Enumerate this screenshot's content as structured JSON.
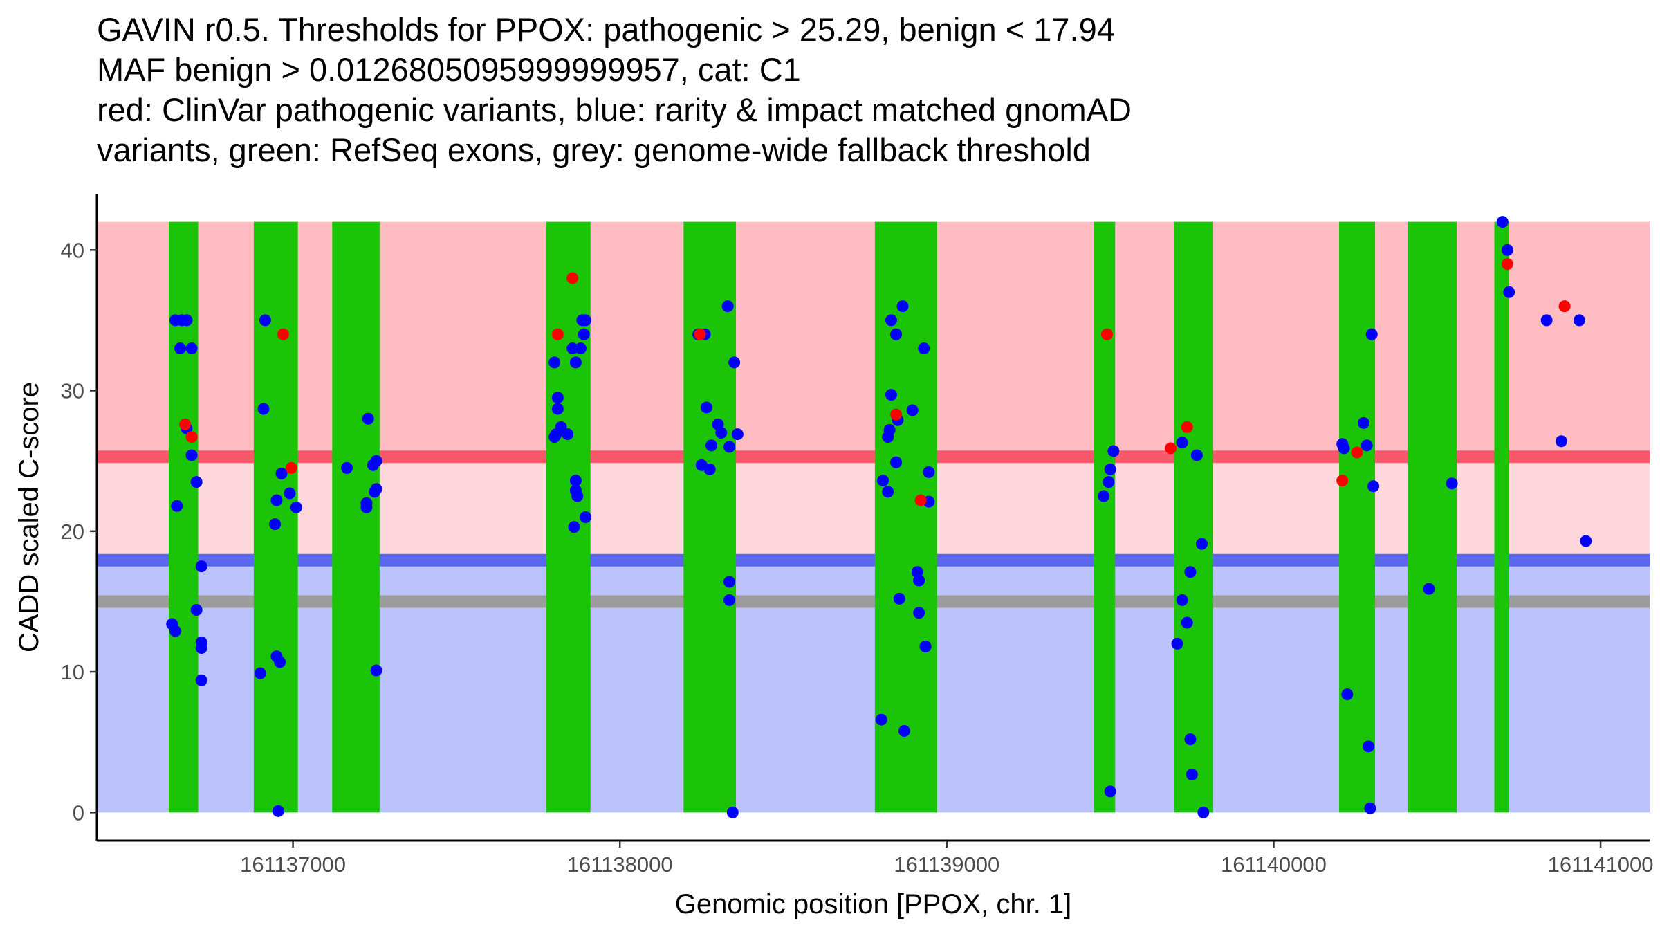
{
  "title_lines": [
    "GAVIN r0.5. Thresholds for PPOX: pathogenic > 25.29, benign < 17.94",
    "MAF benign > 0.0126805095999999957, cat: C1",
    "red: ClinVar pathogenic variants, blue: rarity & impact matched gnomAD",
    "variants, green: RefSeq exons, grey: genome-wide fallback threshold"
  ],
  "colors": {
    "pathogenic_band": "#ffbcc3",
    "between_band": "#ffd8dd",
    "benign_band": "#bcc2fb",
    "pathogenic_line": "#f5596a",
    "benign_line": "#5b68ee",
    "fallback_line": "#9c9c9c",
    "exon": "#1bc407",
    "pathogenic_point": "#ff0000",
    "gnomad_point": "#0000ff"
  },
  "chart_data": {
    "type": "scatter",
    "title": "GAVIN r0.5. Thresholds for PPOX: pathogenic > 25.29, benign < 17.94",
    "xlabel": "Genomic position [PPOX, chr. 1]",
    "ylabel": "CADD scaled C-score",
    "xlim": [
      161136400,
      161141150
    ],
    "ylim": [
      -2,
      44
    ],
    "x_ticks": [
      161137000,
      161138000,
      161139000,
      161140000,
      161141000
    ],
    "y_ticks": [
      0,
      10,
      20,
      30,
      40
    ],
    "band_x_range": [
      161136400,
      161141150
    ],
    "bands": [
      {
        "name": "pathogenic",
        "from": 25.29,
        "to": 42,
        "color": "#ffbcc3"
      },
      {
        "name": "intermediate",
        "from": 17.94,
        "to": 25.29,
        "color": "#ffd8dd"
      },
      {
        "name": "benign",
        "from": 0,
        "to": 17.94,
        "color": "#bcc2fb"
      }
    ],
    "threshold_lines": [
      {
        "name": "pathogenic threshold",
        "y": 25.29,
        "color": "#f5596a"
      },
      {
        "name": "benign threshold",
        "y": 17.94,
        "color": "#5b68ee"
      },
      {
        "name": "genome-wide fallback threshold",
        "y": 15.0,
        "color": "#9c9c9c"
      }
    ],
    "exons": [
      [
        161136620,
        161136710
      ],
      [
        161136880,
        161137015
      ],
      [
        161137120,
        161137265
      ],
      [
        161137775,
        161137910
      ],
      [
        161138195,
        161138355
      ],
      [
        161138780,
        161138970
      ],
      [
        161139450,
        161139515
      ],
      [
        161139695,
        161139815
      ],
      [
        161140200,
        161140310
      ],
      [
        161140410,
        161140560
      ],
      [
        161140675,
        161140720
      ]
    ],
    "series": [
      {
        "name": "ClinVar pathogenic variants",
        "color": "#ff0000",
        "points": [
          [
            161136670,
            27.6
          ],
          [
            161136690,
            26.7
          ],
          [
            161136970,
            34.0
          ],
          [
            161136995,
            24.5
          ],
          [
            161137810,
            34.0
          ],
          [
            161137855,
            38.0
          ],
          [
            161138245,
            34.0
          ],
          [
            161138845,
            28.3
          ],
          [
            161138920,
            22.2
          ],
          [
            161139490,
            34.0
          ],
          [
            161139685,
            25.9
          ],
          [
            161139735,
            27.4
          ],
          [
            161140210,
            23.6
          ],
          [
            161140255,
            25.6
          ],
          [
            161140715,
            39.0
          ],
          [
            161140890,
            36.0
          ]
        ]
      },
      {
        "name": "rarity & impact matched gnomAD variants",
        "color": "#0000ff",
        "points": [
          [
            161136640,
            35.0
          ],
          [
            161136660,
            35.0
          ],
          [
            161136675,
            35.0
          ],
          [
            161136655,
            33.0
          ],
          [
            161136690,
            33.0
          ],
          [
            161136645,
            21.8
          ],
          [
            161136690,
            25.4
          ],
          [
            161136705,
            23.5
          ],
          [
            161136720,
            17.5
          ],
          [
            161136630,
            13.4
          ],
          [
            161136640,
            12.9
          ],
          [
            161136705,
            14.4
          ],
          [
            161136720,
            12.1
          ],
          [
            161136720,
            11.7
          ],
          [
            161136720,
            9.4
          ],
          [
            161136675,
            27.3
          ],
          [
            161136915,
            35.0
          ],
          [
            161136910,
            28.7
          ],
          [
            161136965,
            24.1
          ],
          [
            161136990,
            22.7
          ],
          [
            161136950,
            22.2
          ],
          [
            161137010,
            21.7
          ],
          [
            161136945,
            20.5
          ],
          [
            161136900,
            9.9
          ],
          [
            161136950,
            11.1
          ],
          [
            161136960,
            10.7
          ],
          [
            161136955,
            0.1
          ],
          [
            161137230,
            28.0
          ],
          [
            161137165,
            24.5
          ],
          [
            161137255,
            25.0
          ],
          [
            161137245,
            24.7
          ],
          [
            161137225,
            22.0
          ],
          [
            161137225,
            21.7
          ],
          [
            161137250,
            22.8
          ],
          [
            161137255,
            23.0
          ],
          [
            161137255,
            10.1
          ],
          [
            161137800,
            32.0
          ],
          [
            161137810,
            29.5
          ],
          [
            161137810,
            28.7
          ],
          [
            161137820,
            27.4
          ],
          [
            161137800,
            26.7
          ],
          [
            161137805,
            26.9
          ],
          [
            161137840,
            26.9
          ],
          [
            161137855,
            33.0
          ],
          [
            161137880,
            33.0
          ],
          [
            161137885,
            35.0
          ],
          [
            161137895,
            35.0
          ],
          [
            161137890,
            34.0
          ],
          [
            161137865,
            32.0
          ],
          [
            161137865,
            23.6
          ],
          [
            161137865,
            22.9
          ],
          [
            161137870,
            22.5
          ],
          [
            161137895,
            21.0
          ],
          [
            161137860,
            20.3
          ],
          [
            161138240,
            34.0
          ],
          [
            161138260,
            34.0
          ],
          [
            161138330,
            36.0
          ],
          [
            161138265,
            28.8
          ],
          [
            161138300,
            27.6
          ],
          [
            161138310,
            27.0
          ],
          [
            161138280,
            26.1
          ],
          [
            161138250,
            24.7
          ],
          [
            161138275,
            24.4
          ],
          [
            161138335,
            26.0
          ],
          [
            161138360,
            26.9
          ],
          [
            161138350,
            32.0
          ],
          [
            161138335,
            16.4
          ],
          [
            161138335,
            15.1
          ],
          [
            161138345,
            0.0
          ],
          [
            161138830,
            35.0
          ],
          [
            161138845,
            34.0
          ],
          [
            161138865,
            36.0
          ],
          [
            161138830,
            29.7
          ],
          [
            161138825,
            27.2
          ],
          [
            161138820,
            26.7
          ],
          [
            161138850,
            27.9
          ],
          [
            161138895,
            28.6
          ],
          [
            161138805,
            23.6
          ],
          [
            161138820,
            22.8
          ],
          [
            161138845,
            24.9
          ],
          [
            161138945,
            24.2
          ],
          [
            161138945,
            22.1
          ],
          [
            161138930,
            33.0
          ],
          [
            161138910,
            17.1
          ],
          [
            161138915,
            16.5
          ],
          [
            161138855,
            15.2
          ],
          [
            161138915,
            14.2
          ],
          [
            161138935,
            11.8
          ],
          [
            161138800,
            6.6
          ],
          [
            161138870,
            5.8
          ],
          [
            161139480,
            22.5
          ],
          [
            161139500,
            24.4
          ],
          [
            161139495,
            23.5
          ],
          [
            161139510,
            25.7
          ],
          [
            161139500,
            1.5
          ],
          [
            161139720,
            26.3
          ],
          [
            161139765,
            25.4
          ],
          [
            161139780,
            19.1
          ],
          [
            161139745,
            17.1
          ],
          [
            161139720,
            15.1
          ],
          [
            161139735,
            13.5
          ],
          [
            161139705,
            12.0
          ],
          [
            161139745,
            5.2
          ],
          [
            161139750,
            2.7
          ],
          [
            161139785,
            0.0
          ],
          [
            161140210,
            26.2
          ],
          [
            161140215,
            25.9
          ],
          [
            161140275,
            27.7
          ],
          [
            161140285,
            26.1
          ],
          [
            161140300,
            34.0
          ],
          [
            161140305,
            23.2
          ],
          [
            161140225,
            8.4
          ],
          [
            161140290,
            4.7
          ],
          [
            161140295,
            0.3
          ],
          [
            161140475,
            15.9
          ],
          [
            161140545,
            23.4
          ],
          [
            161140700,
            42.0
          ],
          [
            161140715,
            40.0
          ],
          [
            161140720,
            37.0
          ],
          [
            161140835,
            35.0
          ],
          [
            161140935,
            35.0
          ],
          [
            161140880,
            26.4
          ],
          [
            161140955,
            19.3
          ]
        ]
      }
    ]
  }
}
